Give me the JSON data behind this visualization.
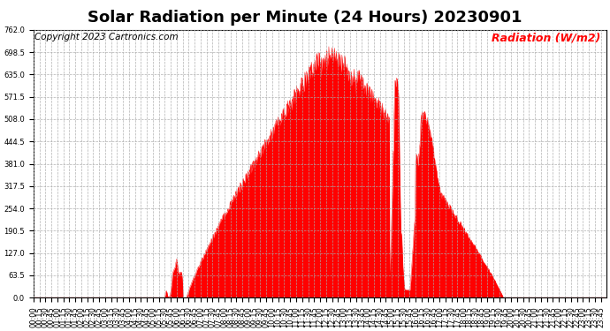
{
  "title": "Solar Radiation per Minute (24 Hours) 20230901",
  "copyright_text": "Copyright 2023 Cartronics.com",
  "ylabel": "Radiation (W/m2)",
  "ylabel_color": "#ff0000",
  "fill_color": "#ff0000",
  "line_color": "#ff0000",
  "background_color": "#ffffff",
  "grid_color": "#aaaaaa",
  "ylim": [
    0.0,
    762.0
  ],
  "yticks": [
    0.0,
    63.5,
    127.0,
    190.5,
    254.0,
    317.5,
    381.0,
    444.5,
    508.0,
    571.5,
    635.0,
    698.5,
    762.0
  ],
  "xtick_interval_minutes": 15,
  "title_fontsize": 13,
  "copyright_fontsize": 7.5,
  "ylabel_fontsize": 9,
  "tick_fontsize": 6
}
